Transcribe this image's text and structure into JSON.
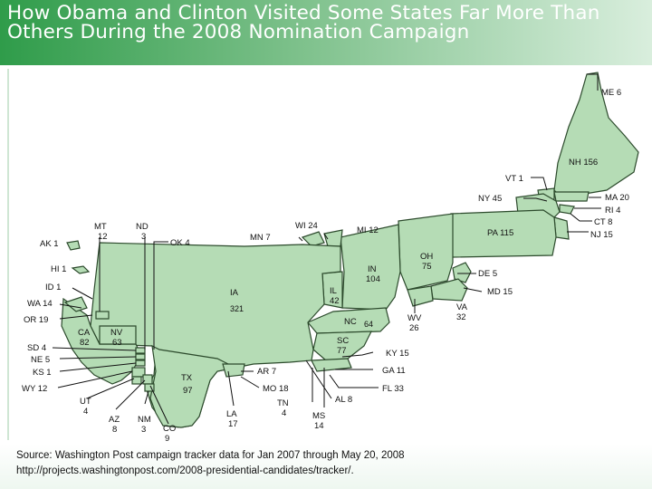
{
  "title": "How Obama and Clinton Visited Some States Far More Than Others During the 2008 Nomination Campaign",
  "colors": {
    "land": "#b5dcb5",
    "border": "#2c4a2c",
    "header": "#2f9c4a"
  },
  "states": {
    "ME": "ME 6",
    "NH": "NH 156",
    "VT": "VT 1",
    "NY": "NY 45",
    "MA": "MA 20",
    "RI": "RI 4",
    "CT": "CT 8",
    "NJ": "NJ 15",
    "PA": "PA 115",
    "DE": "DE 5",
    "MD": "MD 15",
    "VA_name": "VA",
    "VA_val": "32",
    "WV_name": "WV",
    "WV_val": "26",
    "OH_name": "OH",
    "OH_val": "75",
    "IN_name": "IN",
    "IN_val": "104",
    "MI": "MI 12",
    "WI": "WI 24",
    "MN": "MN 7",
    "IL_name": "IL",
    "IL_val": "42",
    "NC_name": "NC",
    "NC_val": "64",
    "SC_name": "SC",
    "SC_val": "77",
    "KY": "KY 15",
    "GA": "GA 11",
    "FL": "FL 33",
    "AL": "AL 8",
    "MS_name": "MS",
    "MS_val": "14",
    "TN_name": "TN",
    "TN_val": "4",
    "LA_name": "LA",
    "LA_val": "17",
    "MO": "MO 18",
    "AR": "AR 7",
    "TX_name": "TX",
    "TX_val": "97",
    "IA_name": "IA",
    "IA_val": "321",
    "OK": "OK 4",
    "ND_name": "ND",
    "ND_val": "3",
    "MT_name": "MT",
    "MT_val": "12",
    "AK": "AK 1",
    "HI": "HI 1",
    "ID": "ID 1",
    "WA": "WA 14",
    "OR": "OR 19",
    "CA_name": "CA",
    "CA_val": "82",
    "NV_name": "NV",
    "NV_val": "63",
    "SD": "SD 4",
    "NE": "NE 5",
    "KS": "KS 1",
    "WY": "WY 12",
    "UT_name": "UT",
    "UT_val": "4",
    "AZ_name": "AZ",
    "AZ_val": "8",
    "NM_name": "NM",
    "NM_val": "3",
    "CO_name": "CO",
    "CO_val": "9"
  },
  "source": "Source: Washington Post campaign tracker data for Jan 2007 through May 20, 2008",
  "url": "http://projects.washingtonpost.com/2008-presidential-candidates/tracker/."
}
